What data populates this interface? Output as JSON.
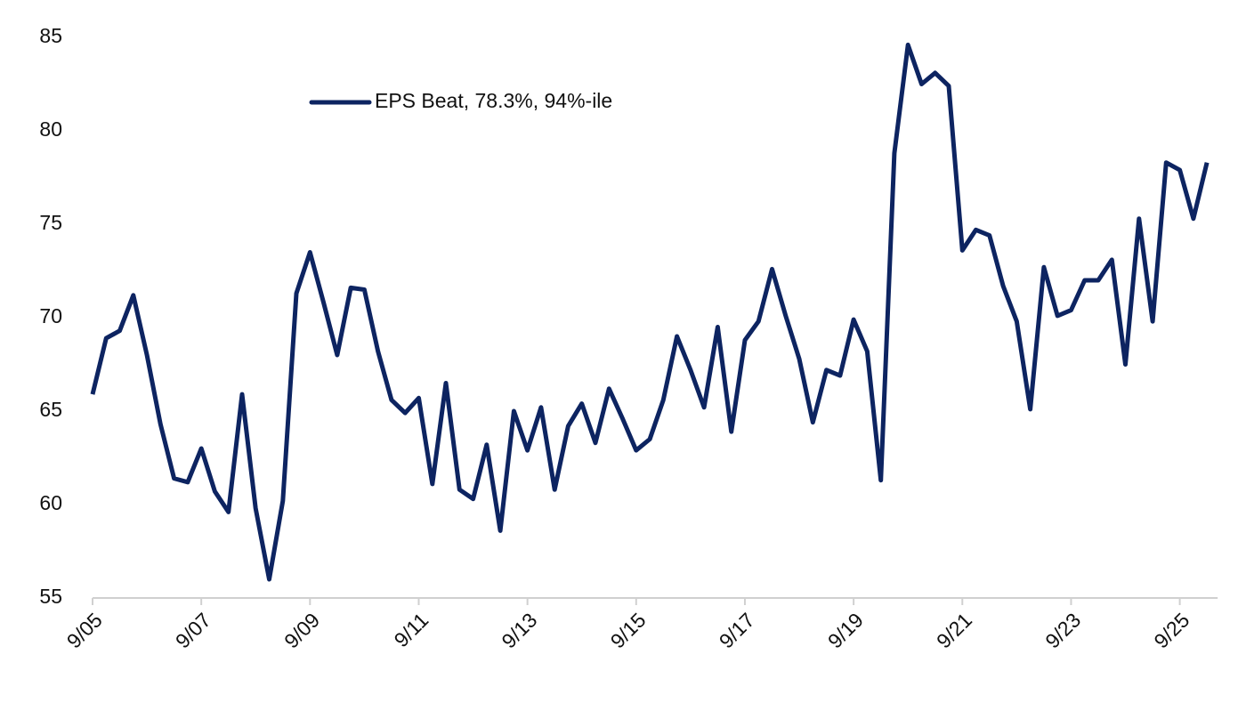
{
  "chart_data": {
    "type": "line",
    "categories": [
      "9/05",
      null,
      null,
      null,
      null,
      null,
      null,
      null,
      "9/07",
      null,
      null,
      null,
      null,
      null,
      null,
      null,
      "9/09",
      null,
      null,
      null,
      null,
      null,
      null,
      null,
      "9/11",
      null,
      null,
      null,
      null,
      null,
      null,
      null,
      "9/13",
      null,
      null,
      null,
      null,
      null,
      null,
      null,
      "9/15",
      null,
      null,
      null,
      null,
      null,
      null,
      null,
      "9/17",
      null,
      null,
      null,
      null,
      null,
      null,
      null,
      "9/19",
      null,
      null,
      null,
      null,
      null,
      null,
      null,
      "9/21",
      null,
      null,
      null,
      null,
      null,
      null,
      null,
      "9/23",
      null,
      null,
      null,
      null,
      null,
      null,
      null,
      "9/25",
      null,
      null
    ],
    "series": [
      {
        "name": "EPS Beat, 78.3%, 94%-ile",
        "color": "#0d2461",
        "values": [
          65.9,
          68.9,
          69.3,
          71.2,
          68.0,
          64.3,
          61.4,
          61.2,
          63.0,
          60.7,
          59.6,
          65.9,
          59.8,
          56.0,
          60.2,
          71.3,
          73.5,
          70.8,
          68.0,
          71.6,
          71.5,
          68.2,
          65.6,
          64.9,
          65.7,
          61.1,
          66.5,
          60.8,
          60.3,
          63.2,
          58.6,
          65.0,
          62.9,
          65.2,
          60.8,
          64.2,
          65.4,
          63.3,
          66.2,
          64.6,
          62.9,
          63.5,
          65.6,
          69.0,
          67.2,
          65.2,
          69.5,
          63.9,
          68.8,
          69.8,
          72.6,
          70.1,
          67.8,
          64.4,
          67.2,
          66.9,
          69.9,
          68.2,
          61.3,
          78.8,
          84.6,
          82.5,
          83.1,
          82.4,
          73.6,
          74.7,
          74.4,
          71.7,
          69.8,
          65.1,
          72.7,
          70.1,
          70.4,
          72.0,
          72.0,
          73.1,
          67.5,
          75.3,
          69.8,
          78.3,
          77.9,
          75.3,
          78.3
        ]
      }
    ],
    "ylim": [
      55,
      85
    ],
    "yticks": [
      55,
      60,
      65,
      70,
      75,
      80,
      85
    ],
    "grid": false,
    "legend": "top-left"
  }
}
